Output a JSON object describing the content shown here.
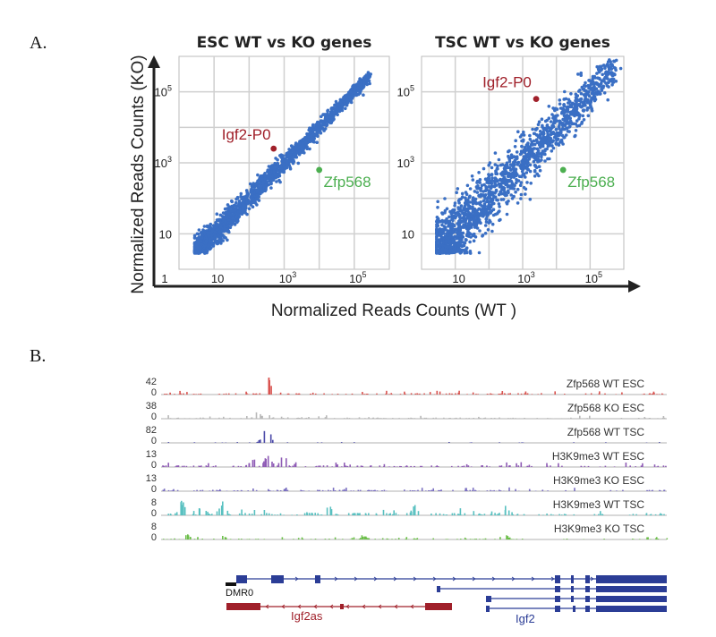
{
  "panel_a_label": "A.",
  "panel_b_label": "B.",
  "chart_data": [
    {
      "type": "scatter",
      "title": "ESC WT vs KO genes",
      "log_scale": true,
      "xlim_log10": [
        0,
        6
      ],
      "ylim_log10": [
        0,
        6
      ],
      "x_ticks": [
        "1",
        "10",
        "10^3",
        "10^5"
      ],
      "y_ticks": [
        "10",
        "10^3",
        "10^5"
      ],
      "point_color": "#3a6fc4",
      "spread": "narrow",
      "bulk_cloud_log10": {
        "from": 0.5,
        "to": 5.4
      },
      "highlights": [
        {
          "label": "Igf2-P0",
          "x_log10": 2.7,
          "y_log10": 3.4,
          "color": "#a0202a"
        },
        {
          "label": "Zfp568",
          "x_log10": 4.0,
          "y_log10": 2.8,
          "color": "#4caf50"
        }
      ],
      "grid": true
    },
    {
      "type": "scatter",
      "title": "TSC WT vs KO genes",
      "log_scale": true,
      "xlim_log10": [
        0,
        6
      ],
      "ylim_log10": [
        0,
        6
      ],
      "x_ticks": [
        "10",
        "10^3",
        "10^5"
      ],
      "y_ticks": [
        "10",
        "10^3",
        "10^5"
      ],
      "point_color": "#3a6fc4",
      "spread": "wide",
      "bulk_cloud_log10": {
        "from": 0.5,
        "to": 5.7
      },
      "highlights": [
        {
          "label": "Igf2-P0",
          "x_log10": 3.4,
          "y_log10": 4.8,
          "color": "#a0202a"
        },
        {
          "label": "Zfp568",
          "x_log10": 4.2,
          "y_log10": 2.8,
          "color": "#4caf50"
        }
      ],
      "grid": true
    }
  ],
  "axes_a": {
    "xlabel": "Normalized Reads Counts (WT )",
    "ylabel": "Normalized Reads Counts (KO)"
  },
  "tracks": [
    {
      "label": "Zfp568 WT ESC",
      "max": "42",
      "color": "#d9534f",
      "peaks": [
        [
          0.21,
          1.0
        ],
        [
          0.205,
          0.55
        ]
      ],
      "noise": 0.08
    },
    {
      "label": "Zfp568 KO ESC",
      "max": "38",
      "color": "#b8b8b8",
      "peaks": [
        [
          0.19,
          0.35
        ],
        [
          0.23,
          0.25
        ]
      ],
      "noise": 0.07
    },
    {
      "label": "Zfp568 WT TSC",
      "max": "82",
      "color": "#4b4aa8",
      "peaks": [
        [
          0.21,
          1.0
        ],
        [
          0.2,
          0.4
        ]
      ],
      "noise": 0.02
    },
    {
      "label": "H3K9me3 WT ESC",
      "max": "13",
      "color": "#8e5bb5",
      "peaks": [
        [
          0.21,
          0.9
        ],
        [
          0.24,
          0.7
        ],
        [
          0.18,
          0.5
        ],
        [
          0.27,
          0.4
        ]
      ],
      "noise": 0.1
    },
    {
      "label": "H3K9me3 KO ESC",
      "max": "13",
      "color": "#7a6fc0",
      "peaks": [],
      "noise": 0.08
    },
    {
      "label": "H3K9me3 WT TSC",
      "max": "8",
      "color": "#58c0c0",
      "peaks": [
        [
          0.04,
          0.85
        ],
        [
          0.08,
          0.7
        ],
        [
          0.12,
          0.8
        ],
        [
          0.33,
          0.6
        ],
        [
          0.5,
          0.5
        ],
        [
          0.68,
          0.45
        ]
      ],
      "noise": 0.15
    },
    {
      "label": "H3K9me3 KO TSC",
      "max": "8",
      "color": "#6cbf4a",
      "peaks": [
        [
          0.05,
          0.3
        ],
        [
          0.12,
          0.25
        ],
        [
          0.4,
          0.2
        ],
        [
          0.68,
          0.25
        ]
      ],
      "noise": 0.05
    }
  ],
  "track_min": "0",
  "genes": {
    "dmr_label": "DMR0",
    "igf2as_label": "Igf2as",
    "igf2_label": "Igf2",
    "igf2_color": "#2b3d96",
    "igf2as_color": "#a0202a"
  }
}
